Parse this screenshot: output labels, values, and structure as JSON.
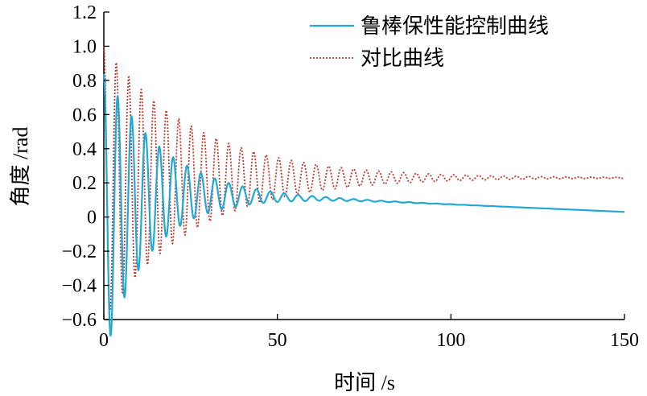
{
  "chart_data": {
    "type": "line",
    "xlabel": "时间 /s",
    "ylabel": "角度 /rad",
    "xlim": [
      0,
      150
    ],
    "ylim": [
      -0.6,
      1.2
    ],
    "xticks": [
      "0",
      "50",
      "100",
      "150"
    ],
    "yticks": [
      "-0.6",
      "-0.4",
      "-0.2",
      "0",
      "0.2",
      "0.4",
      "0.6",
      "0.8",
      "1.0",
      "1.2"
    ],
    "grid": false,
    "legend_position": "top-right",
    "series": [
      {
        "name": "鲁棒保性能控制曲线",
        "color": "#22a9d3",
        "style": "solid",
        "model": "damped-oscillation",
        "initial": 0.88,
        "period": 4.0,
        "oscillation_decay": 0.068,
        "baseline_peak": 0.14,
        "baseline_final": 0.03,
        "x": [
          0,
          1,
          2,
          4,
          8,
          12,
          16,
          20,
          28,
          36,
          44,
          52,
          60,
          80,
          100,
          120,
          150
        ],
        "y": [
          0.88,
          0.2,
          -0.35,
          0.77,
          0.63,
          0.52,
          0.43,
          0.36,
          0.27,
          0.22,
          0.16,
          0.14,
          0.11,
          0.085,
          0.067,
          0.052,
          0.03
        ]
      },
      {
        "name": "对比曲线",
        "color": "#c0392b",
        "style": "dotted",
        "model": "damped-oscillation",
        "initial": 1.0,
        "period": 3.6,
        "oscillation_decay": 0.038,
        "baseline_start": 0.2,
        "baseline_final": 0.23,
        "x": [
          0,
          1,
          1.8,
          3.6,
          7.2,
          10.8,
          14.4,
          18,
          25.2,
          32.4,
          39.6,
          50.4,
          61.2,
          70,
          100,
          150
        ],
        "y": [
          1.0,
          0.3,
          -0.42,
          0.84,
          0.73,
          0.65,
          0.58,
          0.52,
          0.44,
          0.38,
          0.34,
          0.31,
          0.27,
          0.25,
          0.23,
          0.23
        ]
      }
    ]
  }
}
